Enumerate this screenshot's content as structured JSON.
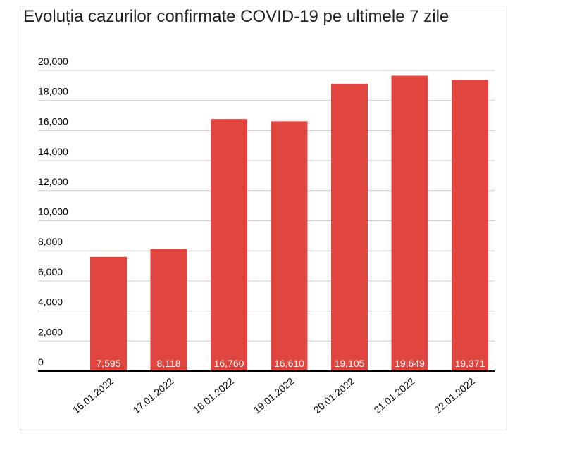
{
  "chart_data": {
    "type": "bar",
    "title": "Evoluția cazurilor confirmate COVID-19 pe ultimele 7 zile",
    "xlabel": "",
    "ylabel": "",
    "categories": [
      "16.01.2022",
      "17.01.2022",
      "18.01.2022",
      "19.01.2022",
      "20.01.2022",
      "21.01.2022",
      "22.01.2022"
    ],
    "values": [
      7595,
      8118,
      16760,
      16610,
      19105,
      19649,
      19371
    ],
    "value_labels": [
      "7,595",
      "8,118",
      "16,760",
      "16,610",
      "19,105",
      "19,649",
      "19,371"
    ],
    "ylim": [
      0,
      20000
    ],
    "yticks": [
      0,
      2000,
      4000,
      6000,
      8000,
      10000,
      12000,
      14000,
      16000,
      18000,
      20000
    ],
    "ytick_labels": [
      "0",
      "2,000",
      "4,000",
      "6,000",
      "8,000",
      "10,000",
      "12,000",
      "14,000",
      "16,000",
      "18,000",
      "20,000"
    ],
    "grid": true,
    "legend": "none",
    "bar_color": "#e0463f",
    "grid_color": "#cccccc",
    "axis_color": "#000000"
  }
}
